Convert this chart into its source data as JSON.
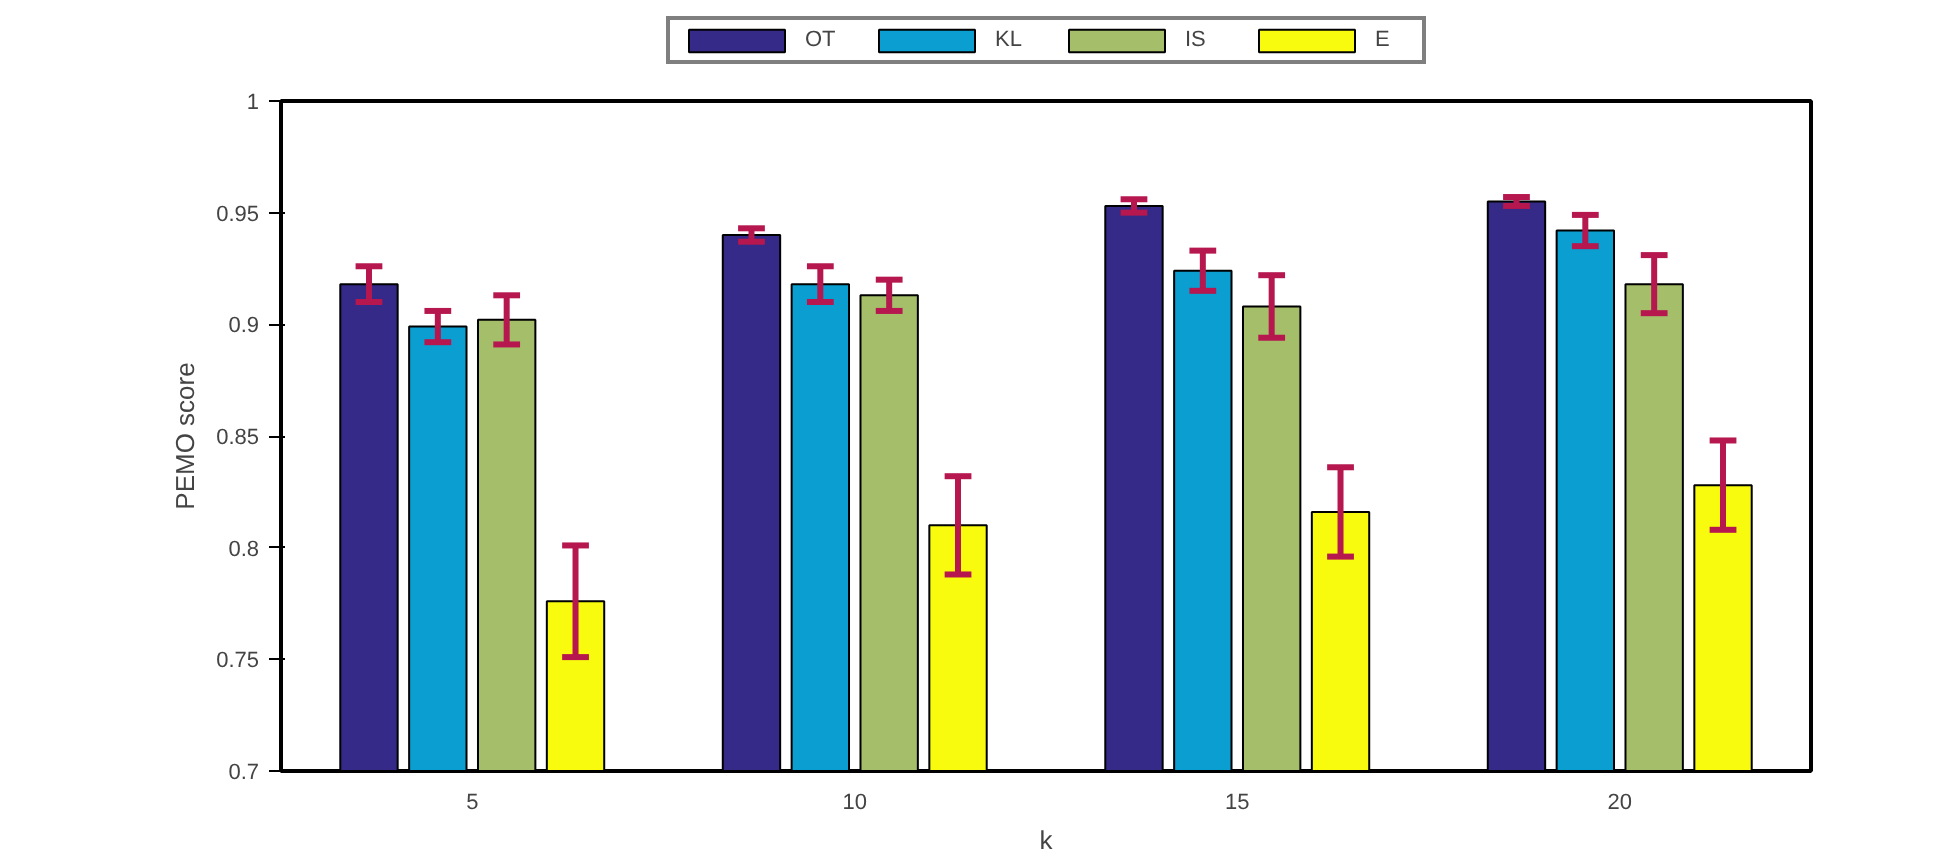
{
  "chart_data": {
    "type": "bar",
    "xlabel": "k",
    "ylabel": "PEMO score",
    "categories": [
      "5",
      "10",
      "15",
      "20"
    ],
    "ylim": [
      0.7,
      1
    ],
    "yticks": [
      0.7,
      0.75,
      0.8,
      0.85,
      0.9,
      0.95,
      1
    ],
    "grid": false,
    "legend": "top",
    "series": [
      {
        "name": "OT",
        "color": "#352a87",
        "values": [
          0.918,
          0.94,
          0.953,
          0.955
        ],
        "errors": [
          0.008,
          0.003,
          0.003,
          0.002
        ]
      },
      {
        "name": "KL",
        "color": "#0a9fd0",
        "values": [
          0.899,
          0.918,
          0.924,
          0.942
        ],
        "errors": [
          0.007,
          0.008,
          0.009,
          0.007
        ]
      },
      {
        "name": "IS",
        "color": "#a5be6a",
        "values": [
          0.902,
          0.913,
          0.908,
          0.918
        ],
        "errors": [
          0.011,
          0.007,
          0.014,
          0.013
        ]
      },
      {
        "name": "E",
        "color": "#f9fb0e",
        "values": [
          0.776,
          0.81,
          0.816,
          0.828
        ],
        "errors": [
          0.025,
          0.022,
          0.02,
          0.02
        ]
      }
    ]
  }
}
